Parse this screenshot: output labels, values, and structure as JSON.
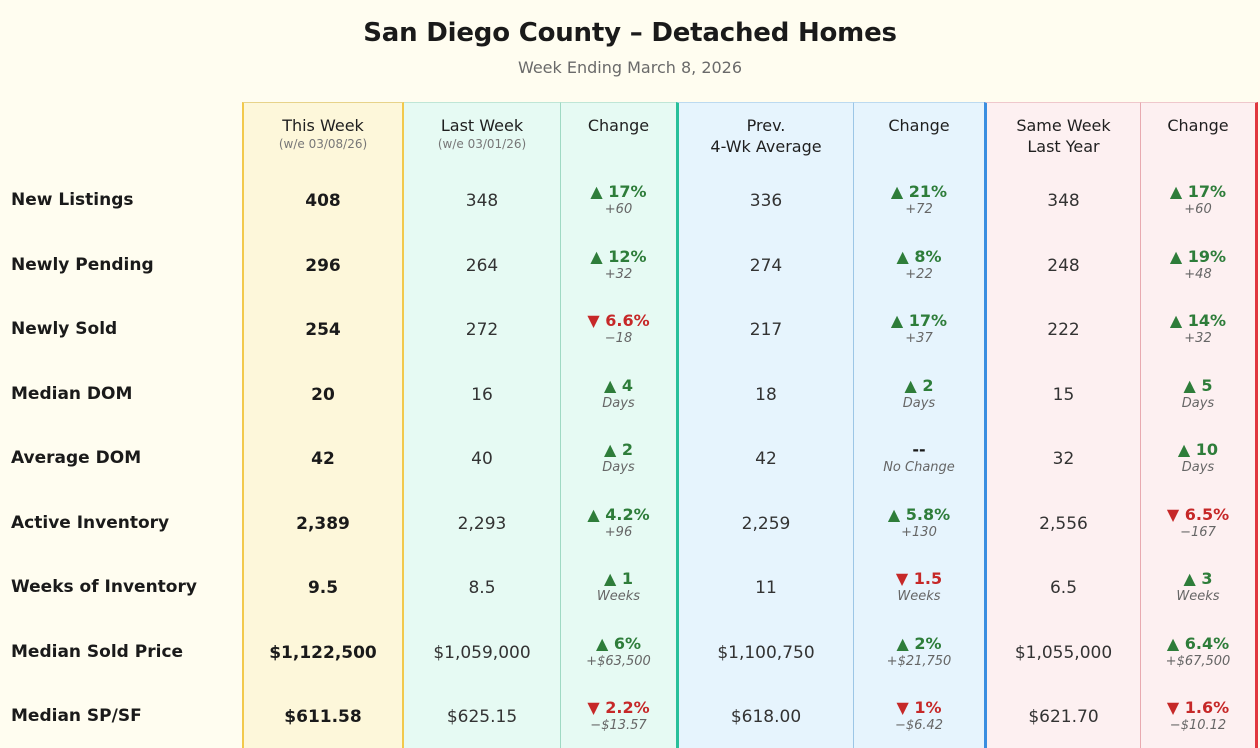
{
  "title": "San Diego County – Detached Homes",
  "subtitle": "Week Ending March 8, 2026",
  "headers": {
    "this_week": "This Week",
    "this_week_sub": "(w/e 03/08/26)",
    "last_week": "Last Week",
    "last_week_sub": "(w/e 03/01/26)",
    "change1": "Change",
    "prev_avg_1": "Prev.",
    "prev_avg_2": "4-Wk Average",
    "change2": "Change",
    "same_week_1": "Same Week",
    "same_week_2": "Last Year",
    "change3": "Change"
  },
  "rows": [
    {
      "label": "New Listings",
      "this_week": "408",
      "last_week": "348",
      "chg1": {
        "dir": "up",
        "main": "▲ 17%",
        "sub": "+60"
      },
      "prev_avg": "336",
      "chg2": {
        "dir": "up",
        "main": "▲ 21%",
        "sub": "+72"
      },
      "same_week": "348",
      "chg3": {
        "dir": "up",
        "main": "▲ 17%",
        "sub": "+60"
      }
    },
    {
      "label": "Newly Pending",
      "this_week": "296",
      "last_week": "264",
      "chg1": {
        "dir": "up",
        "main": "▲ 12%",
        "sub": "+32"
      },
      "prev_avg": "274",
      "chg2": {
        "dir": "up",
        "main": "▲ 8%",
        "sub": "+22"
      },
      "same_week": "248",
      "chg3": {
        "dir": "up",
        "main": "▲ 19%",
        "sub": "+48"
      }
    },
    {
      "label": "Newly Sold",
      "this_week": "254",
      "last_week": "272",
      "chg1": {
        "dir": "down",
        "main": "▼ 6.6%",
        "sub": "−18"
      },
      "prev_avg": "217",
      "chg2": {
        "dir": "up",
        "main": "▲ 17%",
        "sub": "+37"
      },
      "same_week": "222",
      "chg3": {
        "dir": "up",
        "main": "▲ 14%",
        "sub": "+32"
      }
    },
    {
      "label": "Median DOM",
      "this_week": "20",
      "last_week": "16",
      "chg1": {
        "dir": "up",
        "main": "▲ 4",
        "sub": "Days"
      },
      "prev_avg": "18",
      "chg2": {
        "dir": "up",
        "main": "▲ 2",
        "sub": "Days"
      },
      "same_week": "15",
      "chg3": {
        "dir": "up",
        "main": "▲ 5",
        "sub": "Days"
      }
    },
    {
      "label": "Average DOM",
      "this_week": "42",
      "last_week": "40",
      "chg1": {
        "dir": "up",
        "main": "▲ 2",
        "sub": "Days"
      },
      "prev_avg": "42",
      "chg2": {
        "dir": "flat",
        "main": "--",
        "sub": "No Change"
      },
      "same_week": "32",
      "chg3": {
        "dir": "up",
        "main": "▲ 10",
        "sub": "Days"
      }
    },
    {
      "label": "Active Inventory",
      "this_week": "2,389",
      "last_week": "2,293",
      "chg1": {
        "dir": "up",
        "main": "▲ 4.2%",
        "sub": "+96"
      },
      "prev_avg": "2,259",
      "chg2": {
        "dir": "up",
        "main": "▲ 5.8%",
        "sub": "+130"
      },
      "same_week": "2,556",
      "chg3": {
        "dir": "down",
        "main": "▼ 6.5%",
        "sub": "−167"
      }
    },
    {
      "label": "Weeks of Inventory",
      "this_week": "9.5",
      "last_week": "8.5",
      "chg1": {
        "dir": "up",
        "main": "▲ 1",
        "sub": "Weeks"
      },
      "prev_avg": "11",
      "chg2": {
        "dir": "down",
        "main": "▼ 1.5",
        "sub": "Weeks"
      },
      "same_week": "6.5",
      "chg3": {
        "dir": "up",
        "main": "▲ 3",
        "sub": "Weeks"
      }
    },
    {
      "label": "Median Sold Price",
      "this_week": "$1,122,500",
      "last_week": "$1,059,000",
      "chg1": {
        "dir": "up",
        "main": "▲ 6%",
        "sub": "+$63,500"
      },
      "prev_avg": "$1,100,750",
      "chg2": {
        "dir": "up",
        "main": "▲ 2%",
        "sub": "+$21,750"
      },
      "same_week": "$1,055,000",
      "chg3": {
        "dir": "up",
        "main": "▲ 6.4%",
        "sub": "+$67,500"
      }
    },
    {
      "label": "Median SP/SF",
      "this_week": "$611.58",
      "last_week": "$625.15",
      "chg1": {
        "dir": "down",
        "main": "▼ 2.2%",
        "sub": "−$13.57"
      },
      "prev_avg": "$618.00",
      "chg2": {
        "dir": "down",
        "main": "▼ 1%",
        "sub": "−$6.42"
      },
      "same_week": "$621.70",
      "chg3": {
        "dir": "down",
        "main": "▼ 1.6%",
        "sub": "−$10.12"
      }
    }
  ]
}
